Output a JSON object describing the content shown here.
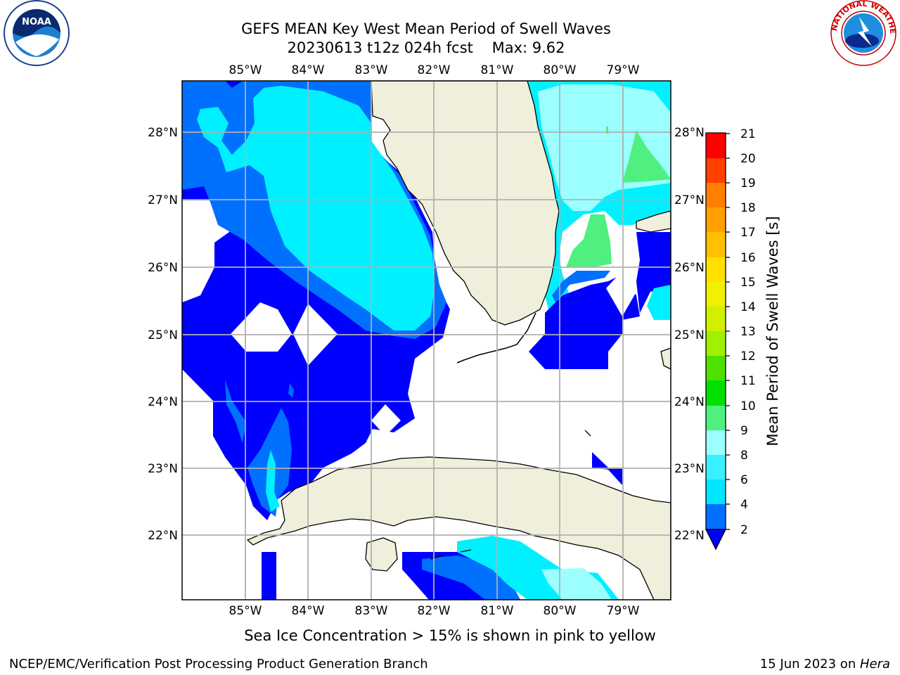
{
  "title": {
    "line1": "GEFS MEAN Key West Mean Period of Swell Waves",
    "line2": "20230613 t12z 024h fcst    Max: 9.62"
  },
  "map": {
    "lon_ticks": [
      "85°W",
      "84°W",
      "83°W",
      "82°W",
      "81°W",
      "80°W",
      "79°W"
    ],
    "lat_ticks": [
      "28°N",
      "27°N",
      "26°N",
      "25°N",
      "24°N",
      "23°N",
      "22°N"
    ],
    "land_color": "#efefdc",
    "grid_color": "#b0b0b0"
  },
  "colorbar": {
    "label": "Mean Period of Swell Waves [s]",
    "ticks": [
      "21",
      "20",
      "19",
      "18",
      "17",
      "16",
      "15",
      "14",
      "13",
      "12",
      "11",
      "10",
      "9",
      "8",
      "6",
      "4",
      "2"
    ],
    "colors": [
      "#0000ff",
      "#0070ff",
      "#00e6ff",
      "#38f0ff",
      "#9cffff",
      "#50f080",
      "#00c000",
      "#30e000",
      "#60f000",
      "#a0f000",
      "#d0f000",
      "#f0f000",
      "#ffe000",
      "#ffc000",
      "#ffa000",
      "#ff8000",
      "#ff5000",
      "#ff2000",
      "#ff0000"
    ]
  },
  "caption": "Sea Ice Concentration > 15% is shown in pink to yellow",
  "footer": {
    "left": "NCEP/EMC/Verification Post Processing Product Generation Branch",
    "date": "15 Jun 2023 on ",
    "host": "Hera"
  },
  "logos": {
    "noaa": "NOAA",
    "nws_ring": "NATIONAL WEATHER SERVICE"
  }
}
